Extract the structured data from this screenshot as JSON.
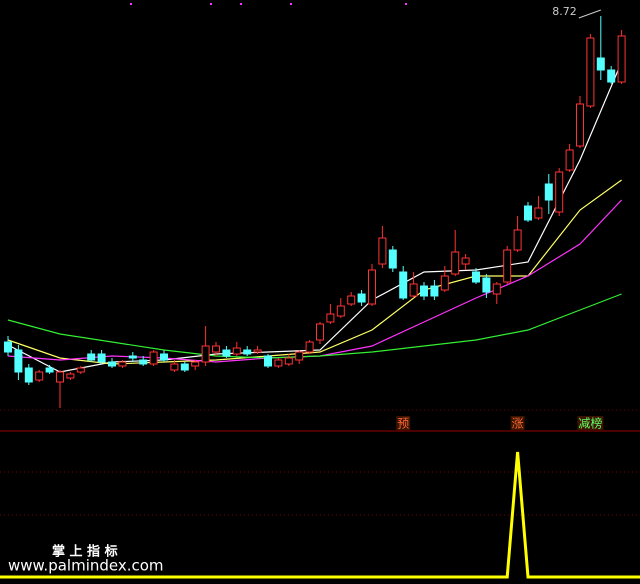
{
  "chart_data": {
    "type": "candlestick",
    "up_color": "#ff3232",
    "down_color": "#54ffff",
    "ylim": [
      4.7,
      8.8
    ],
    "candles": [
      [
        5.46,
        5.36,
        5.32,
        5.52
      ],
      [
        5.38,
        5.16,
        5.08,
        5.43
      ],
      [
        5.2,
        5.06,
        5.03,
        5.24
      ],
      [
        5.08,
        5.16,
        5.06,
        5.18
      ],
      [
        5.2,
        5.16,
        5.14,
        5.23
      ],
      [
        5.06,
        5.16,
        4.8,
        5.18
      ],
      [
        5.1,
        5.14,
        5.08,
        5.16
      ],
      [
        5.16,
        5.2,
        5.14,
        5.22
      ],
      [
        5.34,
        5.28,
        5.26,
        5.38
      ],
      [
        5.34,
        5.26,
        5.24,
        5.38
      ],
      [
        5.26,
        5.22,
        5.2,
        5.3
      ],
      [
        5.22,
        5.26,
        5.2,
        5.28
      ],
      [
        5.32,
        5.3,
        5.26,
        5.36
      ],
      [
        5.28,
        5.24,
        5.22,
        5.32
      ],
      [
        5.24,
        5.36,
        5.22,
        5.38
      ],
      [
        5.34,
        5.28,
        5.26,
        5.38
      ],
      [
        5.18,
        5.24,
        5.16,
        5.28
      ],
      [
        5.24,
        5.18,
        5.16,
        5.26
      ],
      [
        5.22,
        5.26,
        5.18,
        5.28
      ],
      [
        5.26,
        5.42,
        5.22,
        5.62
      ],
      [
        5.36,
        5.42,
        5.32,
        5.46
      ],
      [
        5.38,
        5.32,
        5.3,
        5.42
      ],
      [
        5.34,
        5.4,
        5.32,
        5.46
      ],
      [
        5.38,
        5.34,
        5.32,
        5.42
      ],
      [
        5.36,
        5.38,
        5.34,
        5.42
      ],
      [
        5.32,
        5.22,
        5.2,
        5.34
      ],
      [
        5.22,
        5.28,
        5.2,
        5.3
      ],
      [
        5.24,
        5.3,
        5.22,
        5.34
      ],
      [
        5.28,
        5.36,
        5.24,
        5.38
      ],
      [
        5.36,
        5.46,
        5.34,
        5.48
      ],
      [
        5.48,
        5.64,
        5.44,
        5.66
      ],
      [
        5.66,
        5.74,
        5.64,
        5.84
      ],
      [
        5.72,
        5.82,
        5.7,
        5.9
      ],
      [
        5.84,
        5.92,
        5.82,
        5.96
      ],
      [
        5.94,
        5.86,
        5.82,
        5.98
      ],
      [
        5.84,
        6.18,
        5.82,
        6.24
      ],
      [
        6.24,
        6.5,
        6.2,
        6.62
      ],
      [
        6.38,
        6.2,
        6.16,
        6.42
      ],
      [
        6.16,
        5.9,
        5.88,
        6.22
      ],
      [
        5.92,
        6.04,
        5.9,
        6.16
      ],
      [
        6.02,
        5.92,
        5.88,
        6.06
      ],
      [
        6.02,
        5.92,
        5.88,
        6.08
      ],
      [
        5.98,
        6.12,
        5.96,
        6.22
      ],
      [
        6.14,
        6.36,
        6.12,
        6.58
      ],
      [
        6.24,
        6.3,
        6.18,
        6.34
      ],
      [
        6.16,
        6.06,
        6.04,
        6.2
      ],
      [
        6.1,
        5.96,
        5.9,
        6.14
      ],
      [
        5.94,
        6.04,
        5.84,
        6.06
      ],
      [
        6.06,
        6.38,
        6.04,
        6.42
      ],
      [
        6.38,
        6.58,
        6.36,
        6.72
      ],
      [
        6.82,
        6.68,
        6.66,
        6.86
      ],
      [
        6.7,
        6.8,
        6.68,
        6.92
      ],
      [
        7.04,
        6.88,
        6.74,
        7.14
      ],
      [
        6.76,
        7.16,
        6.72,
        7.2
      ],
      [
        7.18,
        7.38,
        7.16,
        7.44
      ],
      [
        7.42,
        7.84,
        7.4,
        7.92
      ],
      [
        7.82,
        8.5,
        7.8,
        8.54
      ],
      [
        8.3,
        8.18,
        8.08,
        8.72
      ],
      [
        8.18,
        8.06,
        8.04,
        8.22
      ],
      [
        8.06,
        8.52,
        8.04,
        8.58
      ]
    ],
    "ma": [
      {
        "color": "#ffffff",
        "x": [
          0,
          5,
          10,
          15,
          20,
          25,
          30,
          35,
          40,
          45,
          50,
          55,
          59
        ],
        "values": [
          5.43,
          5.16,
          5.26,
          5.28,
          5.34,
          5.36,
          5.38,
          5.88,
          6.16,
          6.18,
          6.26,
          7.28,
          8.26
        ]
      },
      {
        "color": "#ffff66",
        "x": [
          0,
          5,
          10,
          15,
          20,
          25,
          30,
          35,
          40,
          45,
          50,
          55,
          59
        ],
        "values": [
          5.48,
          5.3,
          5.24,
          5.26,
          5.28,
          5.32,
          5.36,
          5.58,
          5.98,
          6.12,
          6.12,
          6.78,
          7.08
        ]
      },
      {
        "color": "#ff33ff",
        "x": [
          0,
          5,
          10,
          15,
          20,
          25,
          30,
          35,
          40,
          45,
          50,
          55,
          59
        ],
        "values": [
          5.32,
          5.28,
          5.32,
          5.3,
          5.26,
          5.3,
          5.32,
          5.42,
          5.66,
          5.9,
          6.12,
          6.44,
          6.88
        ]
      },
      {
        "color": "#33ee33",
        "x": [
          0,
          5,
          10,
          15,
          20,
          25,
          30,
          35,
          40,
          45,
          50,
          55,
          59
        ],
        "values": [
          5.68,
          5.54,
          5.46,
          5.38,
          5.32,
          5.3,
          5.32,
          5.36,
          5.42,
          5.48,
          5.58,
          5.78,
          5.94
        ]
      }
    ],
    "signal_labels": [
      null,
      null,
      null,
      null,
      null,
      null,
      null,
      null,
      null,
      null,
      null,
      null,
      null,
      null,
      null,
      null,
      null,
      null,
      null,
      null,
      null,
      null,
      null,
      null,
      null,
      null,
      null,
      null,
      null,
      null,
      null,
      null,
      null,
      null,
      null,
      null,
      null,
      null,
      "预",
      null,
      null,
      null,
      null,
      null,
      null,
      null,
      null,
      null,
      null,
      "涨",
      null,
      null,
      null,
      null,
      null,
      null,
      "减榜",
      null,
      null,
      null
    ],
    "indicator": {
      "color": "#ffff00",
      "ylim": [
        0,
        1
      ],
      "values": [
        0,
        0,
        0,
        0,
        0,
        0,
        0,
        0,
        0,
        0,
        0,
        0,
        0,
        0,
        0,
        0,
        0,
        0,
        0,
        0,
        0,
        0,
        0,
        0,
        0,
        0,
        0,
        0,
        0,
        0,
        0,
        0,
        0,
        0,
        0,
        0,
        0,
        0,
        0,
        0,
        0,
        0,
        0,
        0,
        0,
        0,
        0,
        0,
        0,
        1,
        0,
        0,
        0,
        0,
        0,
        0,
        0,
        0,
        0,
        0
      ]
    },
    "watermark_title": "掌 上 指 标",
    "watermark_url": "www.palmindex.com"
  }
}
